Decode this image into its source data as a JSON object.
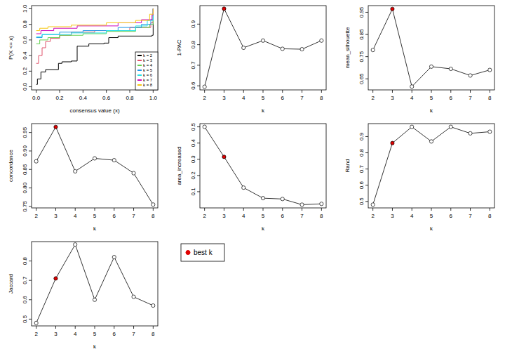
{
  "chart_data": [
    {
      "type": "line",
      "line_style": "step",
      "xlabel": "consensus value (x)",
      "ylabel": "P(X <= x)",
      "legend": "bottomright",
      "xlim": [
        -0.04,
        1.04
      ],
      "ylim": [
        -0.04,
        1.04
      ],
      "xticks": [
        {
          "value": 0,
          "label": "0.0"
        },
        0.2,
        0.4,
        0.6,
        0.8,
        {
          "value": 1,
          "label": "1.0"
        }
      ],
      "yticks": [
        {
          "value": 0,
          "label": "0.0"
        },
        0.2,
        0.4,
        0.6,
        0.8,
        {
          "value": 1,
          "label": "1.0"
        }
      ],
      "series": [
        {
          "name": "k = 2",
          "color": "#000000",
          "x": [
            0,
            0.01,
            0.04,
            0.08,
            0.19,
            0.22,
            0.3,
            0.35,
            0.45,
            0.58,
            0.62,
            0.7,
            0.99,
            1.0
          ],
          "values": [
            0.03,
            0.1,
            0.19,
            0.22,
            0.3,
            0.32,
            0.33,
            0.52,
            0.55,
            0.56,
            0.63,
            0.65,
            0.66,
            1.0
          ]
        },
        {
          "name": "k = 3",
          "color": "#DF536B",
          "x": [
            0,
            0.02,
            0.05,
            0.08,
            0.12,
            0.2,
            0.3,
            0.5,
            0.8,
            0.98,
            1.0
          ],
          "values": [
            0.3,
            0.4,
            0.5,
            0.58,
            0.62,
            0.66,
            0.7,
            0.72,
            0.76,
            0.82,
            1.0
          ]
        },
        {
          "name": "k = 4",
          "color": "#61D04F",
          "x": [
            0,
            0.03,
            0.1,
            0.2,
            0.4,
            0.6,
            0.85,
            0.97,
            1.0
          ],
          "values": [
            0.55,
            0.6,
            0.63,
            0.66,
            0.68,
            0.71,
            0.76,
            0.8,
            1.0
          ]
        },
        {
          "name": "k = 5",
          "color": "#2297E6",
          "x": [
            0,
            0.05,
            0.2,
            0.4,
            0.7,
            0.9,
            0.98,
            1.0
          ],
          "values": [
            0.63,
            0.67,
            0.7,
            0.72,
            0.76,
            0.8,
            0.86,
            1.0
          ]
        },
        {
          "name": "k = 6",
          "color": "#28E2E5",
          "x": [
            0,
            0.05,
            0.3,
            0.6,
            0.85,
            0.95,
            1.0
          ],
          "values": [
            0.64,
            0.67,
            0.69,
            0.72,
            0.78,
            0.85,
            1.0
          ]
        },
        {
          "name": "k = 7",
          "color": "#CD0BBC",
          "x": [
            0,
            0.04,
            0.15,
            0.35,
            0.7,
            0.9,
            0.99,
            1.0
          ],
          "values": [
            0.68,
            0.72,
            0.75,
            0.78,
            0.82,
            0.86,
            0.92,
            1.0
          ]
        },
        {
          "name": "k = 8",
          "color": "#F5C710",
          "x": [
            0,
            0.03,
            0.1,
            0.3,
            0.6,
            0.85,
            0.97,
            1.0
          ],
          "values": [
            0.72,
            0.75,
            0.77,
            0.79,
            0.82,
            0.85,
            0.93,
            1.0
          ]
        }
      ]
    },
    {
      "type": "line",
      "marker": "circle",
      "xlabel": "k",
      "ylabel": "1-PAC",
      "x": [
        2,
        3,
        4,
        5,
        6,
        7,
        8
      ],
      "values": [
        0.595,
        0.975,
        0.785,
        0.82,
        0.78,
        0.778,
        0.82
      ],
      "colors": [
        "#FFFFFF",
        "#DF0000",
        "#FFFFFF",
        "#FFFFFF",
        "#FFFFFF",
        "#FFFFFF",
        "#FFFFFF"
      ],
      "xlim": [
        1.76,
        8.24
      ],
      "ylim": [
        0.58,
        0.99
      ],
      "xticks": [
        2,
        3,
        4,
        5,
        6,
        7,
        8
      ],
      "yticks": [
        0.6,
        0.7,
        0.8,
        0.9
      ]
    },
    {
      "type": "line",
      "marker": "circle",
      "xlabel": "k",
      "ylabel": "mean_silhouette",
      "x": [
        2,
        3,
        4,
        5,
        6,
        7,
        8
      ],
      "values": [
        0.78,
        0.965,
        0.615,
        0.705,
        0.695,
        0.665,
        0.69
      ],
      "colors": [
        "#FFFFFF",
        "#DF0000",
        "#FFFFFF",
        "#FFFFFF",
        "#FFFFFF",
        "#FFFFFF",
        "#FFFFFF"
      ],
      "xlim": [
        1.76,
        8.24
      ],
      "ylim": [
        0.6,
        0.98
      ],
      "xticks": [
        2,
        3,
        4,
        5,
        6,
        7,
        8
      ],
      "yticks": [
        0.65,
        0.75,
        0.85,
        0.95
      ]
    },
    {
      "type": "line",
      "marker": "circle",
      "xlabel": "k",
      "ylabel": "concordance",
      "x": [
        2,
        3,
        4,
        5,
        6,
        7,
        8
      ],
      "values": [
        0.872,
        0.965,
        0.845,
        0.88,
        0.875,
        0.84,
        0.755
      ],
      "colors": [
        "#FFFFFF",
        "#DF0000",
        "#FFFFFF",
        "#FFFFFF",
        "#FFFFFF",
        "#FFFFFF",
        "#FFFFFF"
      ],
      "xlim": [
        1.76,
        8.24
      ],
      "ylim": [
        0.746,
        0.974
      ],
      "xticks": [
        2,
        3,
        4,
        5,
        6,
        7,
        8
      ],
      "yticks": [
        0.75,
        {
          "value": 0.8,
          "label": "0.80"
        },
        0.85,
        {
          "value": 0.9,
          "label": "0.90"
        },
        0.95
      ]
    },
    {
      "type": "line",
      "marker": "circle",
      "xlabel": "k",
      "ylabel": "area_increased",
      "x": [
        2,
        3,
        4,
        5,
        6,
        7,
        8
      ],
      "values": [
        0.5,
        0.315,
        0.125,
        0.06,
        0.055,
        0.02,
        0.025
      ],
      "colors": [
        "#FFFFFF",
        "#DF0000",
        "#FFFFFF",
        "#FFFFFF",
        "#FFFFFF",
        "#FFFFFF",
        "#FFFFFF"
      ],
      "xlim": [
        1.76,
        8.24
      ],
      "ylim": [
        0.0,
        0.52
      ],
      "xticks": [
        2,
        3,
        4,
        5,
        6,
        7,
        8
      ],
      "yticks": [
        0.1,
        0.2,
        0.3,
        0.4,
        0.5
      ]
    },
    {
      "type": "line",
      "marker": "circle",
      "xlabel": "k",
      "ylabel": "Rand",
      "x": [
        2,
        3,
        4,
        5,
        6,
        7,
        8
      ],
      "values": [
        0.48,
        0.86,
        0.96,
        0.87,
        0.96,
        0.92,
        0.93
      ],
      "colors": [
        "#FFFFFF",
        "#DF0000",
        "#FFFFFF",
        "#FFFFFF",
        "#FFFFFF",
        "#FFFFFF",
        "#FFFFFF"
      ],
      "xlim": [
        1.76,
        8.24
      ],
      "ylim": [
        0.46,
        0.98
      ],
      "xticks": [
        2,
        3,
        4,
        5,
        6,
        7,
        8
      ],
      "yticks": [
        0.5,
        0.6,
        0.7,
        0.8,
        0.9
      ]
    },
    {
      "type": "line",
      "marker": "circle",
      "xlabel": "k",
      "ylabel": "Jaccard",
      "x": [
        2,
        3,
        4,
        5,
        6,
        7,
        8
      ],
      "values": [
        0.48,
        0.71,
        0.885,
        0.6,
        0.82,
        0.615,
        0.57
      ],
      "colors": [
        "#FFFFFF",
        "#DF0000",
        "#FFFFFF",
        "#FFFFFF",
        "#FFFFFF",
        "#FFFFFF",
        "#FFFFFF"
      ],
      "xlim": [
        1.76,
        8.24
      ],
      "ylim": [
        0.465,
        0.9
      ],
      "xticks": [
        2,
        3,
        4,
        5,
        6,
        7,
        8
      ],
      "yticks": [
        0.5,
        0.6,
        0.7,
        0.8
      ]
    }
  ],
  "best_k_legend": {
    "label": "best k",
    "color": "#DF0000"
  }
}
